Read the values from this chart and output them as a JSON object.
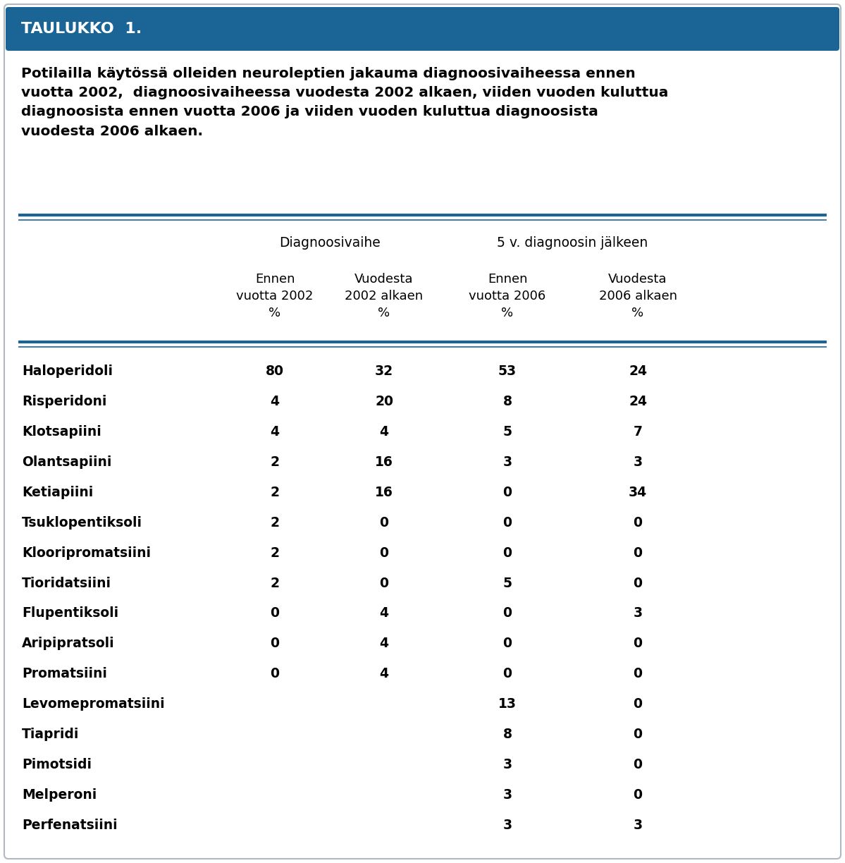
{
  "title_box_text": "TAULUKKO  1.",
  "title_box_color": "#1a6496",
  "title_box_text_color": "#ffffff",
  "subtitle": "Potilailla käytössä olleiden neuroleptien jakauma diagnoosivaiheessa ennen\nvuotta 2002,  diagnoosivaiheessa vuodesta 2002 alkaen, viiden vuoden kuluttua\ndiagnoosista ennen vuotta 2006 ja viiden vuoden kuluttua diagnoosista\nvuodesta 2006 alkaen.",
  "col_group_headers": [
    "Diagnoosivaihe",
    "5 v. diagnoosin jälkeen"
  ],
  "col_headers": [
    "",
    "Ennen\nvuotta 2002\n%",
    "Vuodesta\n2002 alkaen\n%",
    "Ennen\nvuotta 2006\n%",
    "Vuodesta\n2006 alkaen\n%"
  ],
  "rows": [
    [
      "Haloperidoli",
      "80",
      "32",
      "53",
      "24"
    ],
    [
      "Risperidoni",
      "4",
      "20",
      "8",
      "24"
    ],
    [
      "Klotsapiini",
      "4",
      "4",
      "5",
      "7"
    ],
    [
      "Olantsapiini",
      "2",
      "16",
      "3",
      "3"
    ],
    [
      "Ketiapiini",
      "2",
      "16",
      "0",
      "34"
    ],
    [
      "Tsuklopentiksoli",
      "2",
      "0",
      "0",
      "0"
    ],
    [
      "Klooripromatsiini",
      "2",
      "0",
      "0",
      "0"
    ],
    [
      "Tioridatsiini",
      "2",
      "0",
      "5",
      "0"
    ],
    [
      "Flupentiksoli",
      "0",
      "4",
      "0",
      "3"
    ],
    [
      "Aripipratsoli",
      "0",
      "4",
      "0",
      "0"
    ],
    [
      "Promatsiini",
      "0",
      "4",
      "0",
      "0"
    ],
    [
      "Levomepromatsiini",
      "",
      "",
      "13",
      "0"
    ],
    [
      "Tiapridi",
      "",
      "",
      "8",
      "0"
    ],
    [
      "Pimotsidi",
      "",
      "",
      "3",
      "0"
    ],
    [
      "Melperoni",
      "",
      "",
      "3",
      "0"
    ],
    [
      "Perfenatsiini",
      "",
      "",
      "3",
      "3"
    ]
  ],
  "background_color": "#ffffff",
  "border_color": "#b0b8c0",
  "header_line_color": "#1a6496",
  "text_color": "#000000",
  "fig_width": 11.99,
  "fig_height": 12.24,
  "dpi": 100
}
